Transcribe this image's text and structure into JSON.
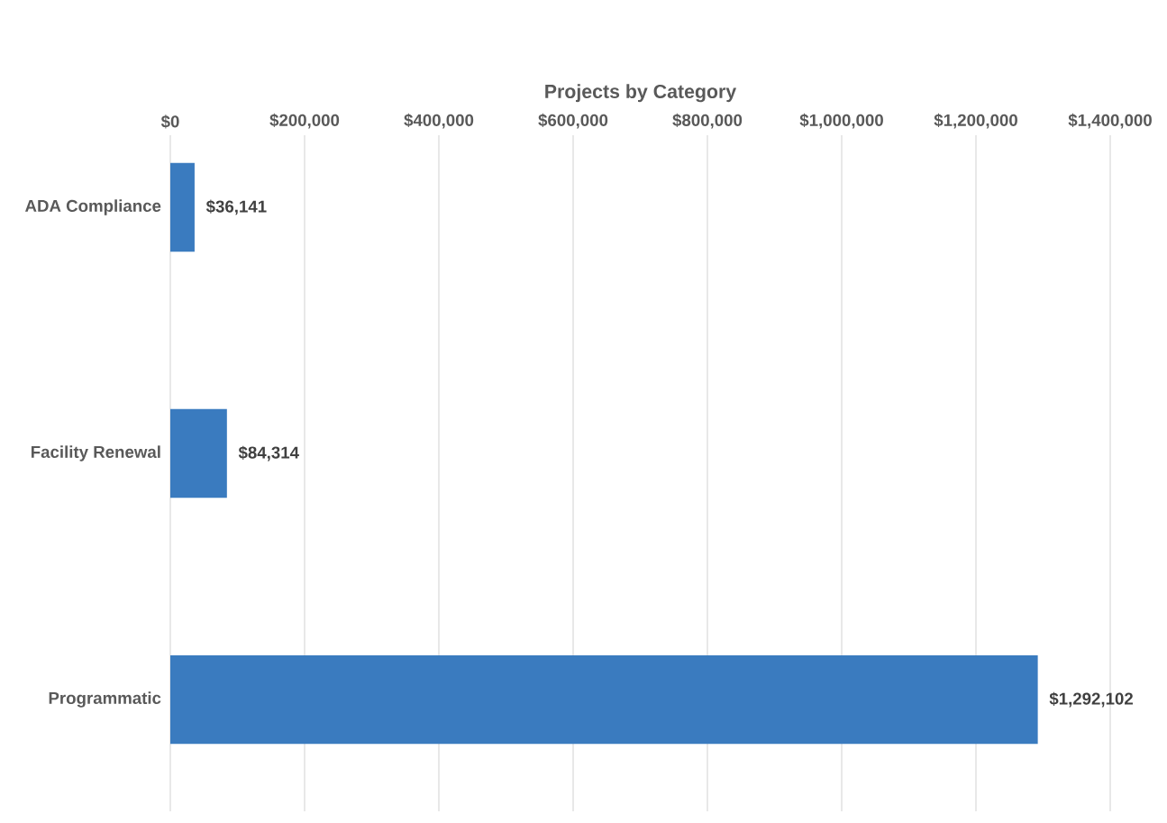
{
  "chart_data": {
    "type": "bar",
    "orientation": "horizontal",
    "title": "Projects by Category",
    "categories": [
      "ADA Compliance",
      "Facility Renewal",
      "Programmatic"
    ],
    "values": [
      36141,
      84314,
      1292102
    ],
    "color": "#3a7bbf",
    "value_labels": [
      "$36,141",
      "$84,314",
      "$1,292,102"
    ],
    "xlim": [
      0,
      1400000
    ],
    "xticks": [
      {
        "value": 0,
        "label": "$0"
      },
      {
        "value": 200000,
        "label": "$200,000"
      },
      {
        "value": 400000,
        "label": "$400,000"
      },
      {
        "value": 600000,
        "label": "$600,000"
      },
      {
        "value": 800000,
        "label": "$800,000"
      },
      {
        "value": 1000000,
        "label": "$1,000,000"
      },
      {
        "value": 1200000,
        "label": "$1,200,000"
      },
      {
        "value": 1400000,
        "label": "$1,400,000"
      }
    ],
    "grid": "x"
  }
}
